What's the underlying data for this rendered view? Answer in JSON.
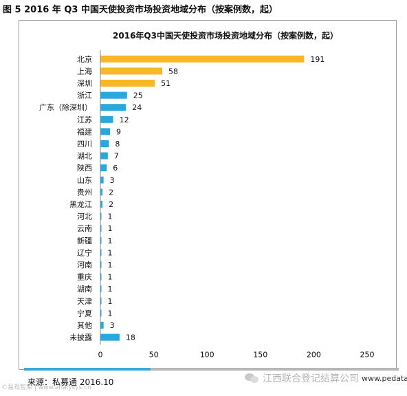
{
  "figure": {
    "caption": "图 5 2016 年 Q3 中国天使投资市场投资地域分布（按案例数，起）",
    "source": "来源：私募通 2016.10",
    "watermark_left": "©易观智库 | www.analysys.cn",
    "watermark_right": "江西联合登记结算公司",
    "watermark_url": "www.pedata.cn"
  },
  "colors": {
    "highlight": "#f8b826",
    "normal": "#29a8dd"
  },
  "chart_data": {
    "type": "bar",
    "orientation": "horizontal",
    "title": "2016年Q3中国天使投资市场投资地域分布（按案例数，起）",
    "xlabel": "",
    "ylabel": "",
    "xlim": [
      0,
      250
    ],
    "xticks": [
      "0",
      "50",
      "100",
      "150",
      "200",
      "250"
    ],
    "grid": false,
    "legend": "none",
    "categories": [
      "北京",
      "上海",
      "深圳",
      "浙江",
      "广东（除深圳）",
      "江苏",
      "福建",
      "四川",
      "湖北",
      "陕西",
      "山东",
      "贵州",
      "黑龙江",
      "河北",
      "云南",
      "新疆",
      "辽宁",
      "河南",
      "重庆",
      "湖南",
      "天津",
      "宁夏",
      "其他",
      "未披露"
    ],
    "values": [
      191,
      58,
      51,
      25,
      24,
      12,
      9,
      8,
      7,
      6,
      3,
      2,
      2,
      1,
      1,
      1,
      1,
      1,
      1,
      1,
      1,
      1,
      3,
      18
    ],
    "highlight_count": 3
  }
}
